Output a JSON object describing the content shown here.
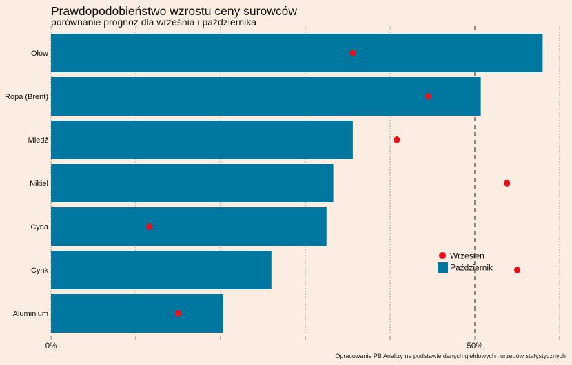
{
  "chart_data": {
    "type": "bar",
    "orientation": "horizontal",
    "title": "Prawdopodobieństwo wzrostu ceny surowców",
    "subtitle": "porównanie prognoz dla września i października",
    "caption": "Opracowanie PB Analizy na podstawie danych giełdowych i urzędów statystycznych",
    "xlabel": "",
    "ylabel": "",
    "xlim": [
      0,
      60
    ],
    "x_ticks": [
      {
        "value": 0,
        "label": "0%"
      },
      {
        "value": 50,
        "label": "50%"
      }
    ],
    "gridlines": [
      0,
      10,
      20,
      30,
      40,
      50,
      60
    ],
    "highlight_gridline": 50,
    "categories": [
      "Ołów",
      "Ropa (Brent)",
      "Miedź",
      "Nikiel",
      "Cyna",
      "Cynk",
      "Aluminium"
    ],
    "series": [
      {
        "name": "Październik",
        "kind": "bar",
        "color": "#0077a0",
        "values": [
          58,
          50.7,
          35.6,
          33.3,
          32.5,
          26,
          20.3
        ]
      },
      {
        "name": "Wrzesień",
        "kind": "point",
        "color": "#e8111a",
        "values": [
          35.6,
          44.5,
          40.8,
          53.8,
          11.6,
          55,
          15
        ]
      }
    ],
    "legend": {
      "placement": "bottom-right",
      "items": [
        {
          "label": "Wrzesień",
          "shape": "circle",
          "color": "#e8111a"
        },
        {
          "label": "Październik",
          "shape": "square",
          "color": "#0077a0"
        }
      ]
    }
  }
}
